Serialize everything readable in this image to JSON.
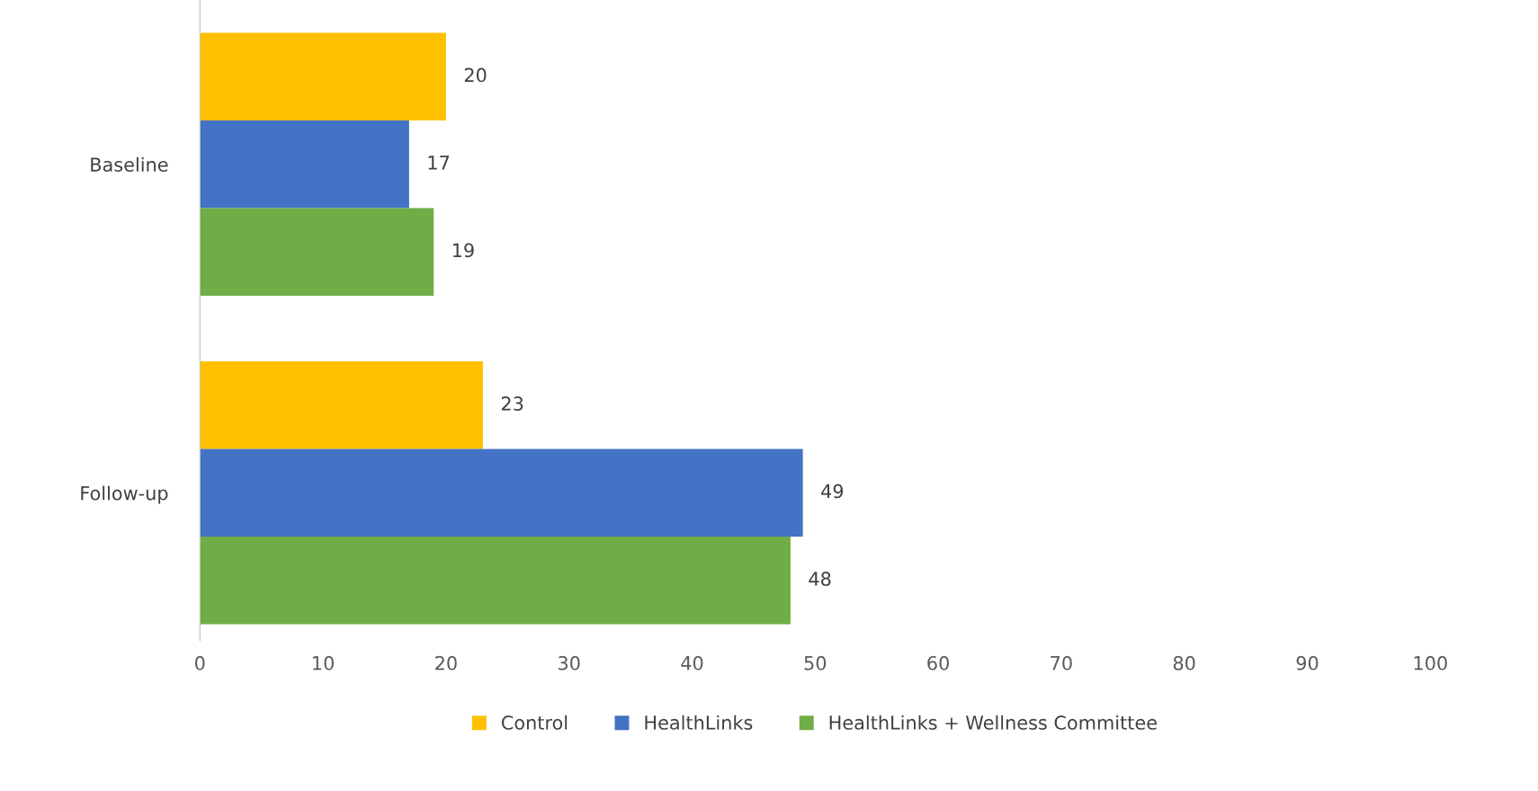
{
  "chart_data": {
    "type": "bar",
    "orientation": "horizontal",
    "categories": [
      "Baseline",
      "Follow-up"
    ],
    "series": [
      {
        "name": "Control",
        "color": "#ffc000",
        "values": [
          20,
          23
        ]
      },
      {
        "name": "HealthLinks",
        "color": "#4472c4",
        "values": [
          17,
          49
        ]
      },
      {
        "name": "HealthLinks + Wellness Committee",
        "color": "#70ad47",
        "values": [
          19,
          48
        ]
      }
    ],
    "xlim": [
      0,
      100
    ],
    "xticks": [
      0,
      10,
      20,
      30,
      40,
      50,
      60,
      70,
      80,
      90,
      100
    ],
    "grid": false,
    "legend": "bottom",
    "data_labels": true
  }
}
